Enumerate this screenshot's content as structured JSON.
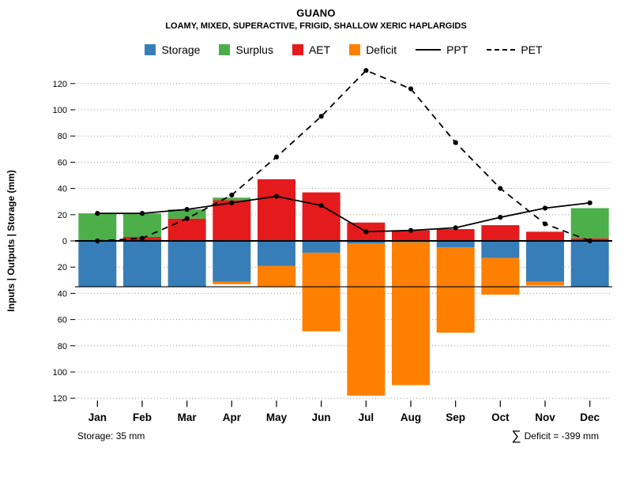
{
  "header": {
    "title": "GUANO",
    "subtitle": "LOAMY, MIXED, SUPERACTIVE, FRIGID, SHALLOW XERIC HAPLARGIDS"
  },
  "legend": {
    "items": [
      {
        "label": "Storage",
        "swatch": "square",
        "color": "#377EB8"
      },
      {
        "label": "Surplus",
        "swatch": "square",
        "color": "#4DAF4A"
      },
      {
        "label": "AET",
        "swatch": "square",
        "color": "#E41A1C"
      },
      {
        "label": "Deficit",
        "swatch": "square",
        "color": "#FF7F00"
      },
      {
        "label": "PPT",
        "swatch": "solid-line",
        "color": "#000000"
      },
      {
        "label": "PET",
        "swatch": "dashed-line",
        "color": "#000000"
      }
    ]
  },
  "footer": {
    "storage_note": "Storage: 35 mm",
    "sum_symbol": "∑",
    "deficit_note": "Deficit = -399 mm"
  },
  "chart_data": {
    "type": "bar",
    "subtype": "mirrored water-balance bars with line overlays",
    "title": "GUANO",
    "subtitle": "LOAMY, MIXED, SUPERACTIVE, FRIGID, SHALLOW XERIC HAPLARGIDS",
    "categories": [
      "Jan",
      "Feb",
      "Mar",
      "Apr",
      "May",
      "Jun",
      "Jul",
      "Aug",
      "Sep",
      "Oct",
      "Nov",
      "Dec"
    ],
    "xlabel": "",
    "ylabel": "Inputs | Outputs | Storage   (mm)",
    "axis": {
      "tick_step_mm": 20,
      "ticks_mm": [
        120,
        100,
        80,
        60,
        40,
        20,
        0,
        -20,
        -40,
        -60,
        -80,
        -100,
        -120
      ],
      "tick_labels_absolute": true,
      "ylim_mm": [
        -125,
        133
      ],
      "grid": "dotted-horizontal"
    },
    "series": [
      {
        "name": "AET",
        "type": "bar",
        "stack": "above-zero",
        "color": "#E41A1C",
        "values_mm": [
          0,
          3,
          17,
          31,
          47,
          37,
          14,
          8,
          9,
          12,
          7,
          2
        ]
      },
      {
        "name": "Surplus",
        "type": "bar",
        "stack": "above-zero",
        "color": "#4DAF4A",
        "values_mm": [
          21,
          18,
          7,
          2,
          0,
          0,
          0,
          0,
          0,
          0,
          0,
          23
        ]
      },
      {
        "name": "Storage",
        "type": "bar",
        "stack": "below-zero",
        "color": "#377EB8",
        "values_mm": [
          35,
          35,
          35,
          31,
          19,
          9,
          2,
          1,
          5,
          13,
          31,
          35
        ]
      },
      {
        "name": "Deficit",
        "type": "bar",
        "stack": "below-zero",
        "color": "#FF7F00",
        "values_mm": [
          0,
          0,
          0,
          2,
          16,
          60,
          116,
          109,
          65,
          28,
          3,
          0
        ]
      },
      {
        "name": "PPT",
        "type": "line",
        "line_style": "solid",
        "color": "#000000",
        "values_mm": [
          21,
          21,
          24,
          29,
          34,
          27,
          7,
          8,
          10,
          18,
          25,
          29
        ]
      },
      {
        "name": "PET",
        "type": "line",
        "line_style": "dashed",
        "color": "#000000",
        "values_mm": [
          0,
          2,
          17,
          35,
          64,
          95,
          130,
          116,
          75,
          40,
          13,
          0
        ]
      }
    ],
    "annotations": {
      "zero_line_mm": 0,
      "storage_capacity_line_mm": -35,
      "storage_capacity_mm": 35,
      "deficit_total_mm": -399
    },
    "legend_position": "top-center"
  }
}
